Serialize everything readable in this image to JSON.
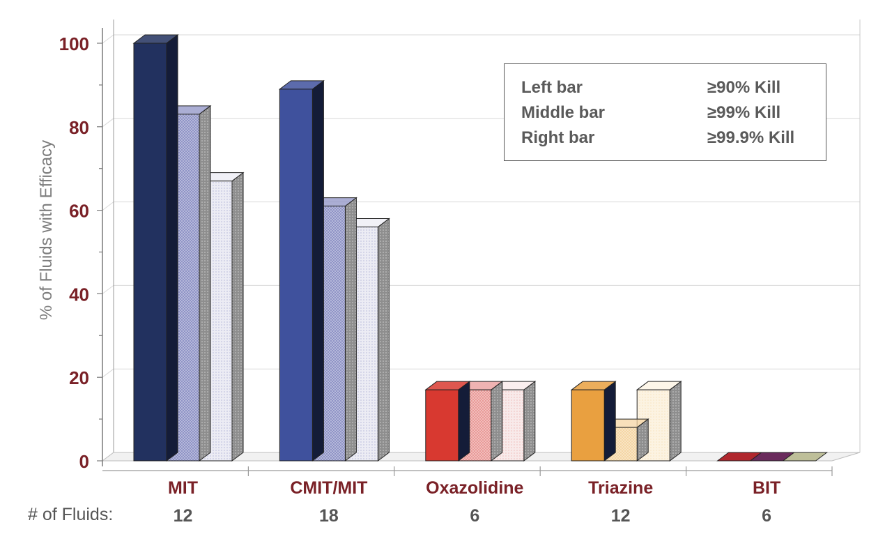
{
  "chart_data": {
    "type": "bar",
    "title": "",
    "ylabel": "% of Fluids with Efficacy",
    "xlabel": "",
    "ylim": [
      0,
      100
    ],
    "yticks": [
      0,
      20,
      40,
      60,
      80,
      100
    ],
    "categories": [
      "MIT",
      "CMIT/MIT",
      "Oxazolidine",
      "Triazine",
      "BIT"
    ],
    "fluid_counts_label": "# of Fluids:",
    "fluid_counts": [
      "12",
      "18",
      "6",
      "12",
      "6"
    ],
    "series": [
      {
        "name": "Left bar",
        "legend_value": "≥90% Kill",
        "values": [
          100,
          89,
          17,
          17,
          0
        ]
      },
      {
        "name": "Middle bar",
        "legend_value": "≥99% Kill",
        "values": [
          83,
          61,
          17,
          8,
          0
        ]
      },
      {
        "name": "Right bar",
        "legend_value": "≥99.9% Kill",
        "values": [
          67,
          56,
          17,
          17,
          0
        ]
      }
    ],
    "bar_colors": [
      [
        "#22315f",
        "#8f93c6",
        "#ececf4"
      ],
      [
        "#3f519d",
        "#8f93c6",
        "#ececf4"
      ],
      [
        "#d83930",
        "#e99a98",
        "#f8eaea"
      ],
      [
        "#e9a040",
        "#f5d6a4",
        "#fcf3e2"
      ],
      [
        "#b0272e",
        "#6a2b5c",
        "#bebf99"
      ]
    ],
    "tick_color": "#7a2127",
    "category_color": "#7a2127",
    "grid": true,
    "legend_position": "top-right"
  }
}
